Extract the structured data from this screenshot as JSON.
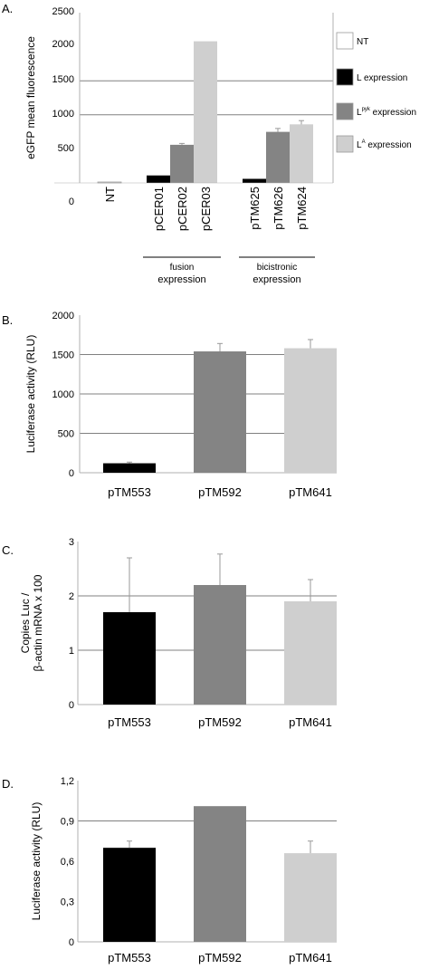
{
  "colors": {
    "black": "#000000",
    "dark_gray": "#848484",
    "light_gray": "#cfcfcf",
    "white": "#ffffff",
    "grid": "#808080",
    "axis": "#b0b0b0"
  },
  "chart_data": [
    {
      "panel_label": "A.",
      "type": "bar",
      "ylabel": "eGFP mean fluorescence",
      "ylim": [
        0,
        2500
      ],
      "yticks": [
        "0",
        "500",
        "1000",
        "1500",
        "2000",
        "2500"
      ],
      "grid": [
        1000,
        1500
      ],
      "categories": [
        "NT",
        "pCER01",
        "pCER02",
        "pCER03",
        "pTM625",
        "pTM626",
        "pTM624"
      ],
      "values": [
        10,
        110,
        560,
        2080,
        60,
        750,
        860
      ],
      "errors": [
        0,
        0,
        20,
        0,
        0,
        50,
        55
      ],
      "bar_colors": [
        "#ffffff",
        "#000000",
        "#848484",
        "#cfcfcf",
        "#000000",
        "#848484",
        "#cfcfcf"
      ],
      "groups": [
        {
          "line1": "fusion",
          "line2": "expression"
        },
        {
          "line1": "bicistronic",
          "line2": "expression"
        }
      ],
      "legend_position": "right",
      "legend": [
        {
          "label": "NT",
          "color": "#ffffff"
        },
        {
          "label": "L expression",
          "color": "#000000"
        },
        {
          "label": "L",
          "sup": "pyk",
          "suffix": " expression",
          "color": "#848484"
        },
        {
          "label": "L",
          "sup": "A",
          "suffix": " expression",
          "color": "#cfcfcf"
        }
      ]
    },
    {
      "panel_label": "B.",
      "type": "bar",
      "ylabel": "Luciferase activity (RLU)",
      "ylim": [
        0,
        2000
      ],
      "yticks": [
        "0",
        "500",
        "1000",
        "1500",
        "2000"
      ],
      "grid": [
        500,
        1000,
        1500
      ],
      "categories": [
        "pTM553",
        "pTM592",
        "pTM641"
      ],
      "values": [
        120,
        1540,
        1580
      ],
      "errors": [
        15,
        100,
        110
      ],
      "bar_colors": [
        "#000000",
        "#848484",
        "#cfcfcf"
      ]
    },
    {
      "panel_label": "C.",
      "type": "bar",
      "ylabel_line1": "Copies Luc /",
      "ylabel_line2": "β-actin mRNA x 100",
      "ylim": [
        0,
        3
      ],
      "yticks": [
        "0",
        "1",
        "2",
        "3"
      ],
      "grid": [
        1,
        2
      ],
      "categories": [
        "pTM553",
        "pTM592",
        "pTM641"
      ],
      "values": [
        1.7,
        2.2,
        1.9
      ],
      "errors": [
        1.0,
        0.57,
        0.4
      ],
      "bar_colors": [
        "#000000",
        "#848484",
        "#cfcfcf"
      ]
    },
    {
      "panel_label": "D.",
      "type": "bar",
      "ylabel": "Luciferase activity  (RLU)",
      "ylim": [
        0,
        1.2
      ],
      "yticks": [
        "0",
        "0,3",
        "0,6",
        "0,9",
        "1,2"
      ],
      "grid": [
        0.9
      ],
      "categories": [
        "pTM553",
        "pTM592",
        "pTM641"
      ],
      "values": [
        0.7,
        1.01,
        0.66
      ],
      "errors": [
        0.05,
        0,
        0.09
      ],
      "bar_colors": [
        "#000000",
        "#848484",
        "#cfcfcf"
      ]
    }
  ]
}
